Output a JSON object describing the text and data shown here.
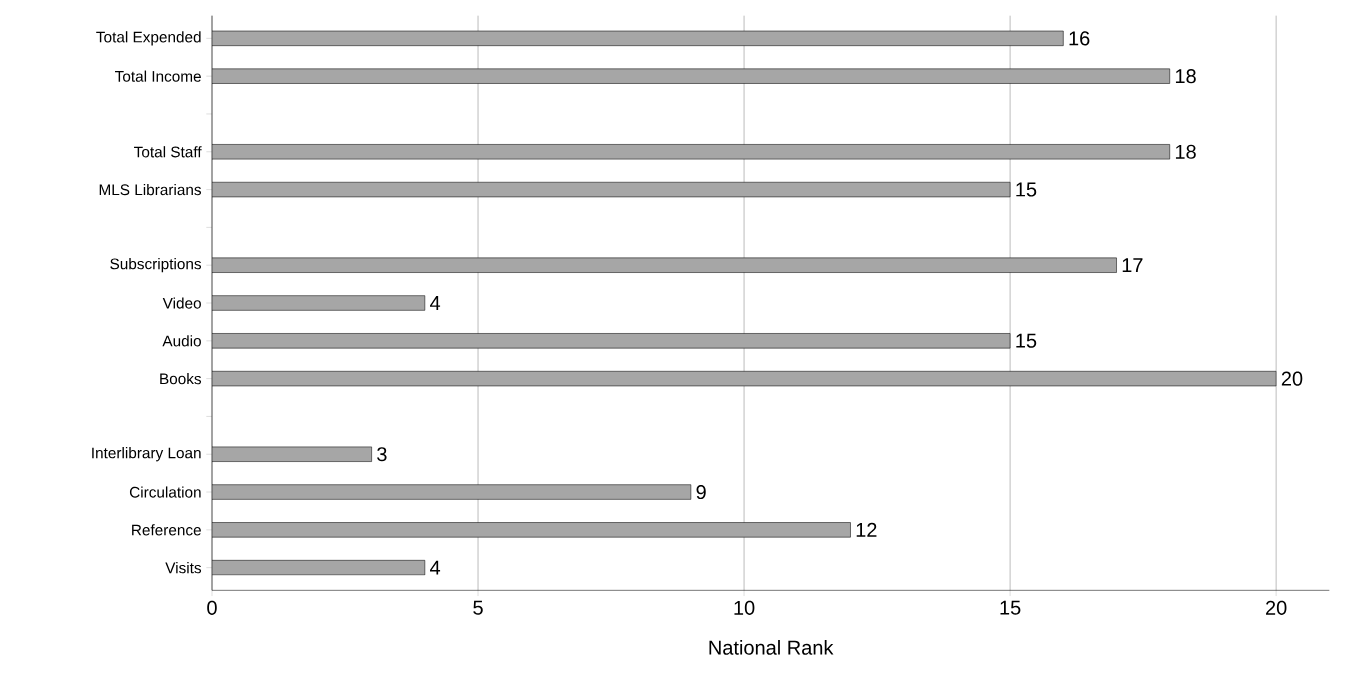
{
  "chart_data": {
    "type": "bar",
    "orientation": "horizontal",
    "xlabel": "National Rank",
    "categories": [
      "Total Expended",
      "Total Income",
      null,
      "Total Staff",
      "MLS Librarians",
      null,
      "Subscriptions",
      "Video",
      "Audio",
      "Books",
      null,
      "Interlibrary Loan",
      "Circulation",
      "Reference",
      "Visits"
    ],
    "values": [
      16,
      18,
      null,
      18,
      15,
      null,
      17,
      4,
      15,
      20,
      null,
      3,
      9,
      12,
      4
    ],
    "color": "#a6a6a6",
    "data_labels": true,
    "xlim": [
      0,
      21
    ],
    "xticks": [
      0,
      5,
      10,
      15,
      20
    ],
    "grid": "x"
  }
}
